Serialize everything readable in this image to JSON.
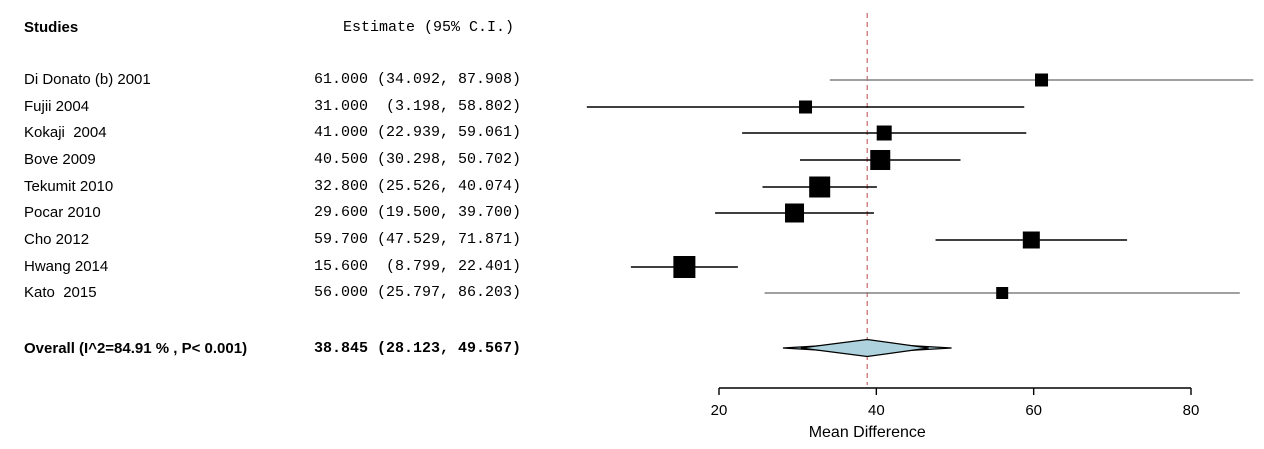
{
  "header": {
    "studies": "Studies",
    "estimate": "Estimate (95% C.I.)"
  },
  "colors": {
    "ci_line": "#000000",
    "ci_line_gray": "#808080",
    "marker": "#000000",
    "diamond_fill": "#aed3de",
    "diamond_stroke": "#000000",
    "reference_line": "#cc7e7e",
    "axis": "#000000",
    "text": "#000000"
  },
  "chart_data": {
    "type": "forest",
    "title": "",
    "xlabel": "Mean Difference",
    "x_ticks": [
      20,
      40,
      60,
      80
    ],
    "x_axis_range": [
      20,
      80
    ],
    "reference_line_value": 38.845,
    "studies": [
      {
        "label": "Di Donato (b) 2001",
        "estimate": 61.0,
        "ci_lower": 34.092,
        "ci_upper": 87.908,
        "estimate_text": "61.000 (34.092, 87.908)",
        "marker_size": 13,
        "line_gray": true
      },
      {
        "label": "Fujii 2004",
        "estimate": 31.0,
        "ci_lower": 3.198,
        "ci_upper": 58.802,
        "estimate_text": "31.000  (3.198, 58.802)",
        "marker_size": 13,
        "line_gray": false
      },
      {
        "label": "Kokaji  2004",
        "estimate": 41.0,
        "ci_lower": 22.939,
        "ci_upper": 59.061,
        "estimate_text": "41.000 (22.939, 59.061)",
        "marker_size": 15,
        "line_gray": false
      },
      {
        "label": "Bove 2009",
        "estimate": 40.5,
        "ci_lower": 30.298,
        "ci_upper": 50.702,
        "estimate_text": "40.500 (30.298, 50.702)",
        "marker_size": 20,
        "line_gray": false
      },
      {
        "label": "Tekumit 2010",
        "estimate": 32.8,
        "ci_lower": 25.526,
        "ci_upper": 40.074,
        "estimate_text": "32.800 (25.526, 40.074)",
        "marker_size": 21,
        "line_gray": false
      },
      {
        "label": "Pocar 2010",
        "estimate": 29.6,
        "ci_lower": 19.5,
        "ci_upper": 39.7,
        "estimate_text": "29.600 (19.500, 39.700)",
        "marker_size": 19,
        "line_gray": false
      },
      {
        "label": "Cho 2012",
        "estimate": 59.7,
        "ci_lower": 47.529,
        "ci_upper": 71.871,
        "estimate_text": "59.700 (47.529, 71.871)",
        "marker_size": 17,
        "line_gray": false
      },
      {
        "label": "Hwang 2014",
        "estimate": 15.6,
        "ci_lower": 8.799,
        "ci_upper": 22.401,
        "estimate_text": "15.600  (8.799, 22.401)",
        "marker_size": 22,
        "line_gray": false
      },
      {
        "label": "Kato  2015",
        "estimate": 56.0,
        "ci_lower": 25.797,
        "ci_upper": 86.203,
        "estimate_text": "56.000 (25.797, 86.203)",
        "marker_size": 12,
        "line_gray": true
      }
    ],
    "overall": {
      "label": "Overall (I^2=84.91 % , P< 0.001)",
      "estimate": 38.845,
      "ci_lower": 28.123,
      "ci_upper": 49.567,
      "estimate_text": "38.845 (28.123, 49.567)"
    }
  }
}
